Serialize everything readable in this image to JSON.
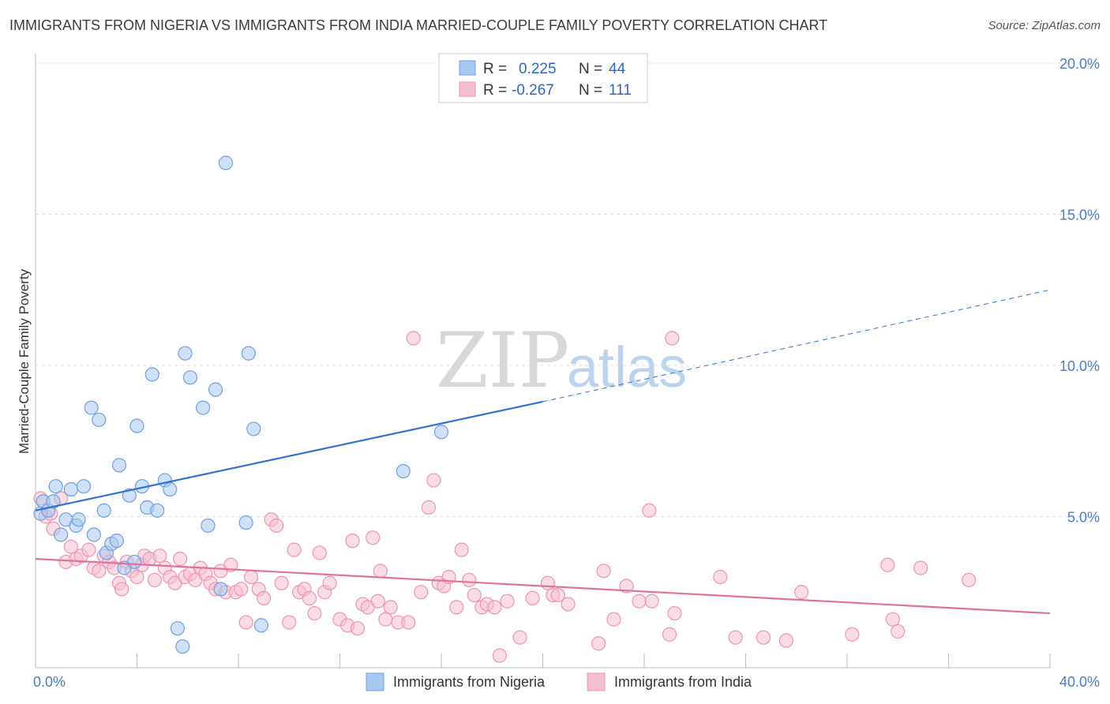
{
  "title": "IMMIGRANTS FROM NIGERIA VS IMMIGRANTS FROM INDIA MARRIED-COUPLE FAMILY POVERTY CORRELATION CHART",
  "source": "Source: ZipAtlas.com",
  "watermark": {
    "zip": "ZIP",
    "atlas": "atlas"
  },
  "colors": {
    "nigeria_fill": "#a9c8f0",
    "nigeria_stroke": "#6f9fe0",
    "nigeria_line": "#2f72d2",
    "india_fill": "#f6bfd1",
    "india_stroke": "#ee93b2",
    "india_line": "#e0719b",
    "grid": "#dddddd",
    "tick_text": "#4a7cc9"
  },
  "legend": {
    "rows": [
      {
        "r_label": "R =",
        "r_value": "0.225",
        "n_label": "N =",
        "n_value": "44"
      },
      {
        "r_label": "R =",
        "r_value": "-0.267",
        "n_label": "N =",
        "n_value": "111"
      }
    ]
  },
  "chart_data": {
    "type": "scatter",
    "title": "IMMIGRANTS FROM NIGERIA VS IMMIGRANTS FROM INDIA MARRIED-COUPLE FAMILY POVERTY CORRELATION CHART",
    "xlabel": "",
    "ylabel": "Married-Couple Family Poverty",
    "xlim": [
      0,
      40
    ],
    "ylim": [
      0,
      20
    ],
    "x_tick_labels": [
      "0.0%",
      "40.0%"
    ],
    "y_ticks": [
      5,
      10,
      15,
      20
    ],
    "y_tick_labels": [
      "5.0%",
      "10.0%",
      "15.0%",
      "20.0%"
    ],
    "grid": true,
    "legend_position": "top-center",
    "series": [
      {
        "name": "Immigrants from Nigeria",
        "r": 0.225,
        "n": 44,
        "trend": {
          "x0": 0,
          "y0": 5.2,
          "x1": 20,
          "y1": 8.8,
          "dashed_to_x": 40,
          "dashed_to_y": 12.5
        },
        "points": [
          [
            0.2,
            5.1
          ],
          [
            0.3,
            5.5
          ],
          [
            0.5,
            5.2
          ],
          [
            0.7,
            5.5
          ],
          [
            0.8,
            6.0
          ],
          [
            1.0,
            4.4
          ],
          [
            1.2,
            4.9
          ],
          [
            1.4,
            5.9
          ],
          [
            1.6,
            4.7
          ],
          [
            1.7,
            4.9
          ],
          [
            1.9,
            6.0
          ],
          [
            2.2,
            8.6
          ],
          [
            2.3,
            4.4
          ],
          [
            2.5,
            8.2
          ],
          [
            2.7,
            5.2
          ],
          [
            2.8,
            3.8
          ],
          [
            3.0,
            4.1
          ],
          [
            3.2,
            4.2
          ],
          [
            3.3,
            6.7
          ],
          [
            3.5,
            3.3
          ],
          [
            3.7,
            5.7
          ],
          [
            3.9,
            3.5
          ],
          [
            4.0,
            8.0
          ],
          [
            4.2,
            6.0
          ],
          [
            4.4,
            5.3
          ],
          [
            4.6,
            9.7
          ],
          [
            4.8,
            5.2
          ],
          [
            5.1,
            6.2
          ],
          [
            5.3,
            5.9
          ],
          [
            5.6,
            1.3
          ],
          [
            5.8,
            0.7
          ],
          [
            5.9,
            10.4
          ],
          [
            6.1,
            9.6
          ],
          [
            6.6,
            8.6
          ],
          [
            6.8,
            4.7
          ],
          [
            7.1,
            9.2
          ],
          [
            7.3,
            2.6
          ],
          [
            7.5,
            16.7
          ],
          [
            8.3,
            4.8
          ],
          [
            8.4,
            10.4
          ],
          [
            8.6,
            7.9
          ],
          [
            8.9,
            1.4
          ],
          [
            14.5,
            6.5
          ],
          [
            16.0,
            7.8
          ]
        ]
      },
      {
        "name": "Immigrants from India",
        "r": -0.267,
        "n": 111,
        "trend": {
          "x0": 0,
          "y0": 3.6,
          "x1": 40,
          "y1": 1.8
        },
        "points": [
          [
            0.2,
            5.6
          ],
          [
            0.4,
            5.0
          ],
          [
            0.6,
            5.1
          ],
          [
            0.7,
            4.6
          ],
          [
            1.0,
            5.6
          ],
          [
            1.2,
            3.5
          ],
          [
            1.4,
            4.0
          ],
          [
            1.6,
            3.6
          ],
          [
            1.8,
            3.7
          ],
          [
            2.1,
            3.9
          ],
          [
            2.3,
            3.3
          ],
          [
            2.5,
            3.2
          ],
          [
            2.7,
            3.7
          ],
          [
            2.9,
            3.5
          ],
          [
            3.1,
            3.3
          ],
          [
            3.3,
            2.8
          ],
          [
            3.4,
            2.6
          ],
          [
            3.6,
            3.5
          ],
          [
            3.8,
            3.2
          ],
          [
            4.0,
            3.0
          ],
          [
            4.2,
            3.4
          ],
          [
            4.3,
            3.7
          ],
          [
            4.5,
            3.6
          ],
          [
            4.7,
            2.9
          ],
          [
            4.9,
            3.7
          ],
          [
            5.1,
            3.3
          ],
          [
            5.3,
            3.0
          ],
          [
            5.5,
            2.8
          ],
          [
            5.7,
            3.6
          ],
          [
            5.9,
            3.0
          ],
          [
            6.1,
            3.1
          ],
          [
            6.3,
            2.9
          ],
          [
            6.5,
            3.3
          ],
          [
            6.7,
            3.1
          ],
          [
            6.9,
            2.8
          ],
          [
            7.1,
            2.6
          ],
          [
            7.3,
            3.2
          ],
          [
            7.5,
            2.5
          ],
          [
            7.7,
            3.4
          ],
          [
            7.9,
            2.5
          ],
          [
            8.1,
            2.6
          ],
          [
            8.3,
            1.5
          ],
          [
            8.5,
            3.0
          ],
          [
            8.8,
            2.6
          ],
          [
            9.0,
            2.3
          ],
          [
            9.3,
            4.9
          ],
          [
            9.5,
            4.7
          ],
          [
            9.7,
            2.8
          ],
          [
            10.0,
            1.5
          ],
          [
            10.2,
            3.9
          ],
          [
            10.4,
            2.5
          ],
          [
            10.6,
            2.6
          ],
          [
            10.8,
            2.3
          ],
          [
            11.0,
            1.8
          ],
          [
            11.2,
            3.8
          ],
          [
            11.4,
            2.5
          ],
          [
            11.6,
            2.8
          ],
          [
            12.0,
            1.6
          ],
          [
            12.3,
            1.4
          ],
          [
            12.5,
            4.2
          ],
          [
            12.7,
            1.3
          ],
          [
            12.9,
            2.1
          ],
          [
            13.1,
            2.0
          ],
          [
            13.3,
            4.3
          ],
          [
            13.5,
            2.2
          ],
          [
            13.6,
            3.2
          ],
          [
            13.8,
            1.6
          ],
          [
            14.0,
            2.0
          ],
          [
            14.3,
            1.5
          ],
          [
            14.7,
            1.5
          ],
          [
            14.9,
            10.9
          ],
          [
            15.2,
            2.5
          ],
          [
            15.5,
            5.3
          ],
          [
            15.7,
            6.2
          ],
          [
            15.9,
            2.8
          ],
          [
            16.1,
            2.7
          ],
          [
            16.3,
            3.0
          ],
          [
            16.6,
            2.0
          ],
          [
            16.8,
            3.9
          ],
          [
            17.1,
            2.9
          ],
          [
            17.3,
            2.4
          ],
          [
            17.6,
            2.0
          ],
          [
            17.8,
            2.1
          ],
          [
            18.1,
            2.0
          ],
          [
            18.3,
            0.4
          ],
          [
            18.6,
            2.2
          ],
          [
            19.1,
            1.0
          ],
          [
            19.6,
            2.3
          ],
          [
            20.2,
            2.8
          ],
          [
            20.4,
            2.4
          ],
          [
            20.6,
            2.4
          ],
          [
            21.0,
            2.1
          ],
          [
            22.2,
            0.8
          ],
          [
            22.4,
            3.2
          ],
          [
            22.8,
            1.6
          ],
          [
            23.3,
            2.7
          ],
          [
            23.8,
            2.2
          ],
          [
            24.2,
            5.2
          ],
          [
            24.3,
            2.2
          ],
          [
            25.0,
            1.1
          ],
          [
            25.1,
            10.9
          ],
          [
            25.2,
            1.8
          ],
          [
            27.0,
            3.0
          ],
          [
            27.6,
            1.0
          ],
          [
            28.7,
            1.0
          ],
          [
            29.6,
            0.9
          ],
          [
            30.2,
            2.5
          ],
          [
            32.2,
            1.1
          ],
          [
            33.6,
            3.4
          ],
          [
            33.8,
            1.6
          ],
          [
            34.0,
            1.2
          ],
          [
            34.9,
            3.3
          ],
          [
            36.8,
            2.9
          ]
        ]
      }
    ]
  },
  "bottom_legend": [
    "Immigrants from Nigeria",
    "Immigrants from India"
  ]
}
